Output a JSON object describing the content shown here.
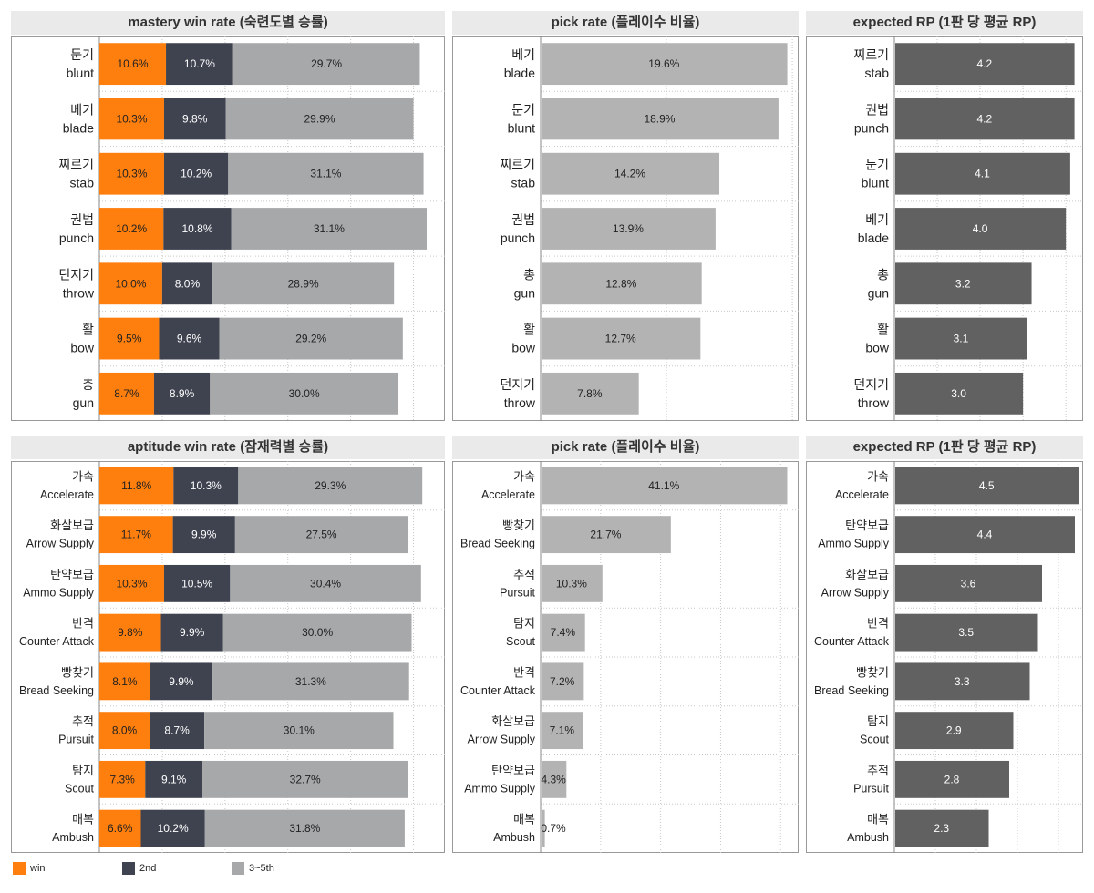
{
  "colors": {
    "win": "#ff7f0e",
    "second": "#3f4350",
    "third_fifth": "#a6a8aa",
    "pick": "#b3b3b3",
    "rp": "#616161"
  },
  "legend": [
    {
      "label": "win",
      "color": "#ff7f0e"
    },
    {
      "label": "2nd",
      "color": "#3f4350"
    },
    {
      "label": "3~5th",
      "color": "#a6a8aa"
    }
  ],
  "chart_data": [
    {
      "type": "bar",
      "orientation": "horizontal",
      "stacked": true,
      "title": "mastery win rate (숙련도별 승률)",
      "categories": [
        {
          "ko": "둔기",
          "en": "blunt"
        },
        {
          "ko": "베기",
          "en": "blade"
        },
        {
          "ko": "찌르기",
          "en": "stab"
        },
        {
          "ko": "권법",
          "en": "punch"
        },
        {
          "ko": "던지기",
          "en": "throw"
        },
        {
          "ko": "활",
          "en": "bow"
        },
        {
          "ko": "총",
          "en": "gun"
        }
      ],
      "series": [
        {
          "name": "win",
          "values": [
            10.6,
            10.3,
            10.3,
            10.2,
            10.0,
            9.5,
            8.7
          ],
          "labels": [
            "10.6%",
            "10.3%",
            "10.3%",
            "10.2%",
            "10.0%",
            "9.5%",
            "8.7%"
          ]
        },
        {
          "name": "2nd",
          "values": [
            10.7,
            9.8,
            10.2,
            10.8,
            8.0,
            9.6,
            8.9
          ],
          "labels": [
            "10.7%",
            "9.8%",
            "10.2%",
            "10.8%",
            "8.0%",
            "9.6%",
            "8.9%"
          ]
        },
        {
          "name": "3~5th",
          "values": [
            29.7,
            29.9,
            31.1,
            31.1,
            28.9,
            29.2,
            30.0
          ],
          "labels": [
            "29.7%",
            "29.9%",
            "31.1%",
            "31.1%",
            "28.9%",
            "29.2%",
            "30.0%"
          ]
        }
      ],
      "xlim": [
        0,
        55
      ],
      "grid": "dotted"
    },
    {
      "type": "bar",
      "orientation": "horizontal",
      "title": "pick rate (플레이수 비율)",
      "categories": [
        {
          "ko": "베기",
          "en": "blade"
        },
        {
          "ko": "둔기",
          "en": "blunt"
        },
        {
          "ko": "찌르기",
          "en": "stab"
        },
        {
          "ko": "권법",
          "en": "punch"
        },
        {
          "ko": "총",
          "en": "gun"
        },
        {
          "ko": "활",
          "en": "bow"
        },
        {
          "ko": "던지기",
          "en": "throw"
        }
      ],
      "values": [
        19.6,
        18.9,
        14.2,
        13.9,
        12.8,
        12.7,
        7.8
      ],
      "labels": [
        "19.6%",
        "18.9%",
        "14.2%",
        "13.9%",
        "12.8%",
        "12.7%",
        "7.8%"
      ],
      "xlim": [
        0,
        20.5
      ],
      "grid": "dotted"
    },
    {
      "type": "bar",
      "orientation": "horizontal",
      "title": "expected RP (1판 당 평균 RP)",
      "categories": [
        {
          "ko": "찌르기",
          "en": "stab"
        },
        {
          "ko": "권법",
          "en": "punch"
        },
        {
          "ko": "둔기",
          "en": "blunt"
        },
        {
          "ko": "베기",
          "en": "blade"
        },
        {
          "ko": "총",
          "en": "gun"
        },
        {
          "ko": "활",
          "en": "bow"
        },
        {
          "ko": "던지기",
          "en": "throw"
        }
      ],
      "values": [
        4.2,
        4.2,
        4.1,
        4.0,
        3.2,
        3.1,
        3.0
      ],
      "labels": [
        "4.2",
        "4.2",
        "4.1",
        "4.0",
        "3.2",
        "3.1",
        "3.0"
      ],
      "xlim": [
        0,
        4.4
      ],
      "grid": "dotted"
    },
    {
      "type": "bar",
      "orientation": "horizontal",
      "stacked": true,
      "title": "aptitude win rate (잠재력별 승률)",
      "categories": [
        {
          "ko": "가속",
          "en": "Accelerate"
        },
        {
          "ko": "화살보급",
          "en": "Arrow Supply"
        },
        {
          "ko": "탄약보급",
          "en": "Ammo Supply"
        },
        {
          "ko": "반격",
          "en": "Counter Attack"
        },
        {
          "ko": "빵찾기",
          "en": "Bread Seeking"
        },
        {
          "ko": "추적",
          "en": "Pursuit"
        },
        {
          "ko": "탐지",
          "en": "Scout"
        },
        {
          "ko": "매복",
          "en": "Ambush"
        }
      ],
      "series": [
        {
          "name": "win",
          "values": [
            11.8,
            11.7,
            10.3,
            9.8,
            8.1,
            8.0,
            7.3,
            6.6
          ],
          "labels": [
            "11.8%",
            "11.7%",
            "10.3%",
            "9.8%",
            "8.1%",
            "8.0%",
            "7.3%",
            "6.6%"
          ]
        },
        {
          "name": "2nd",
          "values": [
            10.3,
            9.9,
            10.5,
            9.9,
            9.9,
            8.7,
            9.1,
            10.2
          ],
          "labels": [
            "10.3%",
            "9.9%",
            "10.5%",
            "9.9%",
            "9.9%",
            "8.7%",
            "9.1%",
            "10.2%"
          ]
        },
        {
          "name": "3~5th",
          "values": [
            29.3,
            27.5,
            30.4,
            30.0,
            31.3,
            30.1,
            32.7,
            31.8
          ],
          "labels": [
            "29.3%",
            "27.5%",
            "30.4%",
            "30.0%",
            "31.3%",
            "30.1%",
            "32.7%",
            "31.8%"
          ]
        }
      ],
      "xlim": [
        0,
        55
      ],
      "grid": "dotted"
    },
    {
      "type": "bar",
      "orientation": "horizontal",
      "title": "pick rate (플레이수 비율)",
      "categories": [
        {
          "ko": "가속",
          "en": "Accelerate"
        },
        {
          "ko": "빵찾기",
          "en": "Bread Seeking"
        },
        {
          "ko": "추적",
          "en": "Pursuit"
        },
        {
          "ko": "탐지",
          "en": "Scout"
        },
        {
          "ko": "반격",
          "en": "Counter Attack"
        },
        {
          "ko": "화살보급",
          "en": "Arrow Supply"
        },
        {
          "ko": "탄약보급",
          "en": "Ammo Supply"
        },
        {
          "ko": "매복",
          "en": "Ambush"
        }
      ],
      "values": [
        41.1,
        21.7,
        10.3,
        7.4,
        7.2,
        7.1,
        4.3,
        0.7
      ],
      "labels": [
        "41.1%",
        "21.7%",
        "10.3%",
        "7.4%",
        "7.2%",
        "7.1%",
        "4.3%",
        "0.7%"
      ],
      "xlim": [
        0,
        43
      ],
      "grid": "dotted"
    },
    {
      "type": "bar",
      "orientation": "horizontal",
      "title": "expected RP (1판 당 평균 RP)",
      "categories": [
        {
          "ko": "가속",
          "en": "Accelerate"
        },
        {
          "ko": "탄약보급",
          "en": "Ammo Supply"
        },
        {
          "ko": "화살보급",
          "en": "Arrow Supply"
        },
        {
          "ko": "반격",
          "en": "Counter Attack"
        },
        {
          "ko": "빵찾기",
          "en": "Bread Seeking"
        },
        {
          "ko": "탐지",
          "en": "Scout"
        },
        {
          "ko": "추적",
          "en": "Pursuit"
        },
        {
          "ko": "매복",
          "en": "Ambush"
        }
      ],
      "values": [
        4.5,
        4.4,
        3.6,
        3.5,
        3.3,
        2.9,
        2.8,
        2.3
      ],
      "labels": [
        "4.5",
        "4.4",
        "3.6",
        "3.5",
        "3.3",
        "2.9",
        "2.8",
        "2.3"
      ],
      "xlim": [
        0,
        4.6
      ],
      "grid": "dotted"
    }
  ]
}
